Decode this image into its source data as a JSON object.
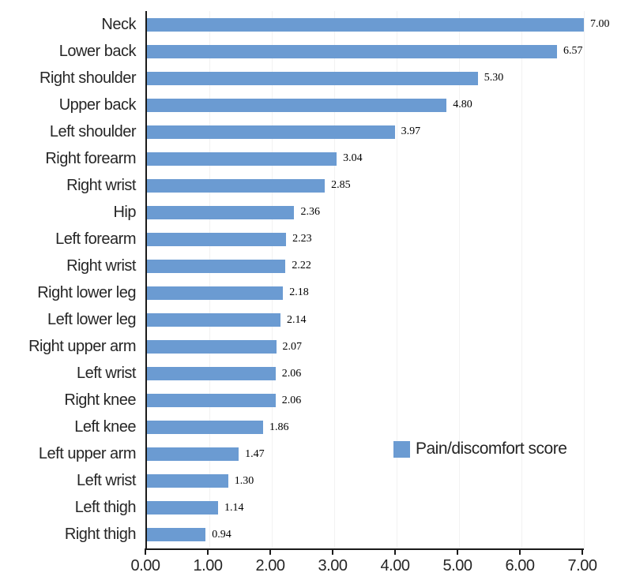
{
  "chart_data": {
    "type": "bar",
    "orientation": "horizontal",
    "title": "",
    "xlabel": "",
    "ylabel": "",
    "xlim": [
      0,
      7
    ],
    "grid": "faint-vertical-unit-lines",
    "bar_color": "#6b9bd2",
    "axis_color": "#1a1a1a",
    "text_color": "#262626",
    "categories": [
      "Neck",
      "Lower back",
      "Right shoulder",
      "Upper back",
      "Left shoulder",
      "Right forearm",
      "Right wrist",
      "Hip",
      "Left forearm",
      "Right wrist",
      "Right lower leg",
      "Left lower leg",
      "Right upper arm",
      "Left wrist",
      "Right knee",
      "Left knee",
      "Left upper arm",
      "Left wrist",
      "Left thigh",
      "Right thigh"
    ],
    "values": [
      7.0,
      6.57,
      5.3,
      4.8,
      3.97,
      3.04,
      2.85,
      2.36,
      2.23,
      2.22,
      2.18,
      2.14,
      2.07,
      2.06,
      2.06,
      1.86,
      1.47,
      1.3,
      1.14,
      0.94
    ],
    "value_labels": [
      "7.00",
      "6.57",
      "5.30",
      "4.80",
      "3.97",
      "3.04",
      "2.85",
      "2.36",
      "2.23",
      "2.22",
      "2.18",
      "2.14",
      "2.07",
      "2.06",
      "2.06",
      "1.86",
      "1.47",
      "1.30",
      "1.14",
      "0.94"
    ],
    "x_ticks": [
      "0.00",
      "1.00",
      "2.00",
      "3.00",
      "4.00",
      "5.00",
      "6.00",
      "7.00"
    ],
    "legend": {
      "label": "Pain/discomfort score",
      "position": "middle-right"
    }
  }
}
